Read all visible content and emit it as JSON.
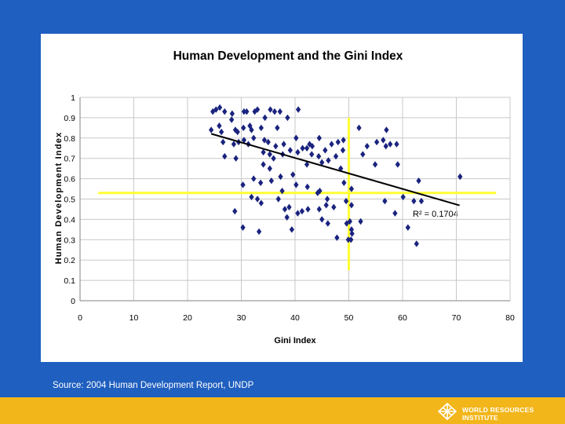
{
  "source_text": "Source: 2004 Human Development Report, UNDP",
  "footer": {
    "org_name": "WORLD RESOURCES INSTITUTE",
    "logo_icon": "wri-globe-icon",
    "bar_color": "#f2b61a"
  },
  "background_color": "#1f5fbf",
  "chart_data": {
    "type": "scatter",
    "title": "Human Development and the Gini Index",
    "xlabel": "Gini Index",
    "ylabel": "Human Development Index",
    "xlim": [
      0,
      80
    ],
    "ylim": [
      0,
      1
    ],
    "xticks": [
      0,
      10,
      20,
      30,
      40,
      50,
      60,
      70,
      80
    ],
    "yticks": [
      0,
      0.1,
      0.2,
      0.3,
      0.4,
      0.5,
      0.6,
      0.7,
      0.8,
      0.9,
      1
    ],
    "grid": true,
    "marker": "diamond",
    "marker_color": "#1a237e",
    "trendline": {
      "x": [
        24.4,
        70.6
      ],
      "y": [
        0.821,
        0.469
      ],
      "color": "#000000"
    },
    "r_squared_label": "R² = 0.1704",
    "reference_lines": {
      "color": "#ffff33",
      "vertical": {
        "x": 50,
        "y_range": [
          0.15,
          0.9
        ]
      },
      "horizontal": {
        "y": 0.53,
        "x_range": [
          3.4,
          77.4
        ]
      }
    },
    "points": [
      [
        24.7,
        0.93
      ],
      [
        25.3,
        0.94
      ],
      [
        26.0,
        0.95
      ],
      [
        26.9,
        0.93
      ],
      [
        28.3,
        0.92
      ],
      [
        30.5,
        0.93
      ],
      [
        31.0,
        0.93
      ],
      [
        32.5,
        0.93
      ],
      [
        33.0,
        0.94
      ],
      [
        35.4,
        0.94
      ],
      [
        36.2,
        0.93
      ],
      [
        37.2,
        0.93
      ],
      [
        40.6,
        0.94
      ],
      [
        24.4,
        0.84
      ],
      [
        25.9,
        0.86
      ],
      [
        26.3,
        0.83
      ],
      [
        28.2,
        0.89
      ],
      [
        28.9,
        0.84
      ],
      [
        29.3,
        0.83
      ],
      [
        30.4,
        0.85
      ],
      [
        31.6,
        0.86
      ],
      [
        31.9,
        0.84
      ],
      [
        33.7,
        0.85
      ],
      [
        34.4,
        0.9
      ],
      [
        36.7,
        0.85
      ],
      [
        38.6,
        0.9
      ],
      [
        26.6,
        0.78
      ],
      [
        28.6,
        0.77
      ],
      [
        29.5,
        0.78
      ],
      [
        30.5,
        0.79
      ],
      [
        31.3,
        0.77
      ],
      [
        32.3,
        0.8
      ],
      [
        34.3,
        0.79
      ],
      [
        35.0,
        0.78
      ],
      [
        36.4,
        0.76
      ],
      [
        37.9,
        0.77
      ],
      [
        40.2,
        0.8
      ],
      [
        41.4,
        0.75
      ],
      [
        42.7,
        0.77
      ],
      [
        43.2,
        0.76
      ],
      [
        44.5,
        0.8
      ],
      [
        45.6,
        0.74
      ],
      [
        46.8,
        0.77
      ],
      [
        48.0,
        0.78
      ],
      [
        49.0,
        0.79
      ],
      [
        26.9,
        0.71
      ],
      [
        29.0,
        0.7
      ],
      [
        34.1,
        0.73
      ],
      [
        35.3,
        0.72
      ],
      [
        36.0,
        0.7
      ],
      [
        37.7,
        0.72
      ],
      [
        39.1,
        0.74
      ],
      [
        40.5,
        0.73
      ],
      [
        42.2,
        0.75
      ],
      [
        43.1,
        0.72
      ],
      [
        44.4,
        0.71
      ],
      [
        45.0,
        0.68
      ],
      [
        46.2,
        0.69
      ],
      [
        47.6,
        0.71
      ],
      [
        48.5,
        0.65
      ],
      [
        48.9,
        0.74
      ],
      [
        34.1,
        0.67
      ],
      [
        35.3,
        0.65
      ],
      [
        37.3,
        0.61
      ],
      [
        39.6,
        0.62
      ],
      [
        42.2,
        0.67
      ],
      [
        30.3,
        0.57
      ],
      [
        32.3,
        0.6
      ],
      [
        33.6,
        0.58
      ],
      [
        35.6,
        0.59
      ],
      [
        37.6,
        0.54
      ],
      [
        40.2,
        0.57
      ],
      [
        42.3,
        0.56
      ],
      [
        44.2,
        0.53
      ],
      [
        44.6,
        0.54
      ],
      [
        46.0,
        0.5
      ],
      [
        31.9,
        0.51
      ],
      [
        33.0,
        0.5
      ],
      [
        33.7,
        0.48
      ],
      [
        36.9,
        0.5
      ],
      [
        38.1,
        0.45
      ],
      [
        38.9,
        0.46
      ],
      [
        40.5,
        0.43
      ],
      [
        41.3,
        0.44
      ],
      [
        42.4,
        0.45
      ],
      [
        44.5,
        0.45
      ],
      [
        45.8,
        0.47
      ],
      [
        47.2,
        0.46
      ],
      [
        28.8,
        0.44
      ],
      [
        38.5,
        0.41
      ],
      [
        45.0,
        0.4
      ],
      [
        46.1,
        0.38
      ],
      [
        30.3,
        0.36
      ],
      [
        33.3,
        0.34
      ],
      [
        39.4,
        0.35
      ],
      [
        47.8,
        0.31
      ],
      [
        49.6,
        0.38
      ],
      [
        50.2,
        0.39
      ],
      [
        50.5,
        0.35
      ],
      [
        49.9,
        0.3
      ],
      [
        50.6,
        0.33
      ],
      [
        50.4,
        0.3
      ],
      [
        49.1,
        0.58
      ],
      [
        50.5,
        0.55
      ],
      [
        49.5,
        0.49
      ],
      [
        50.5,
        0.47
      ],
      [
        51.9,
        0.85
      ],
      [
        52.6,
        0.72
      ],
      [
        53.4,
        0.76
      ],
      [
        54.9,
        0.67
      ],
      [
        55.2,
        0.78
      ],
      [
        56.4,
        0.79
      ],
      [
        56.9,
        0.76
      ],
      [
        57.0,
        0.84
      ],
      [
        57.7,
        0.77
      ],
      [
        58.9,
        0.77
      ],
      [
        59.1,
        0.67
      ],
      [
        56.7,
        0.49
      ],
      [
        52.2,
        0.39
      ],
      [
        58.6,
        0.43
      ],
      [
        60.1,
        0.51
      ],
      [
        61.0,
        0.36
      ],
      [
        62.1,
        0.49
      ],
      [
        63.0,
        0.59
      ],
      [
        63.5,
        0.49
      ],
      [
        62.6,
        0.28
      ],
      [
        70.7,
        0.61
      ]
    ]
  }
}
